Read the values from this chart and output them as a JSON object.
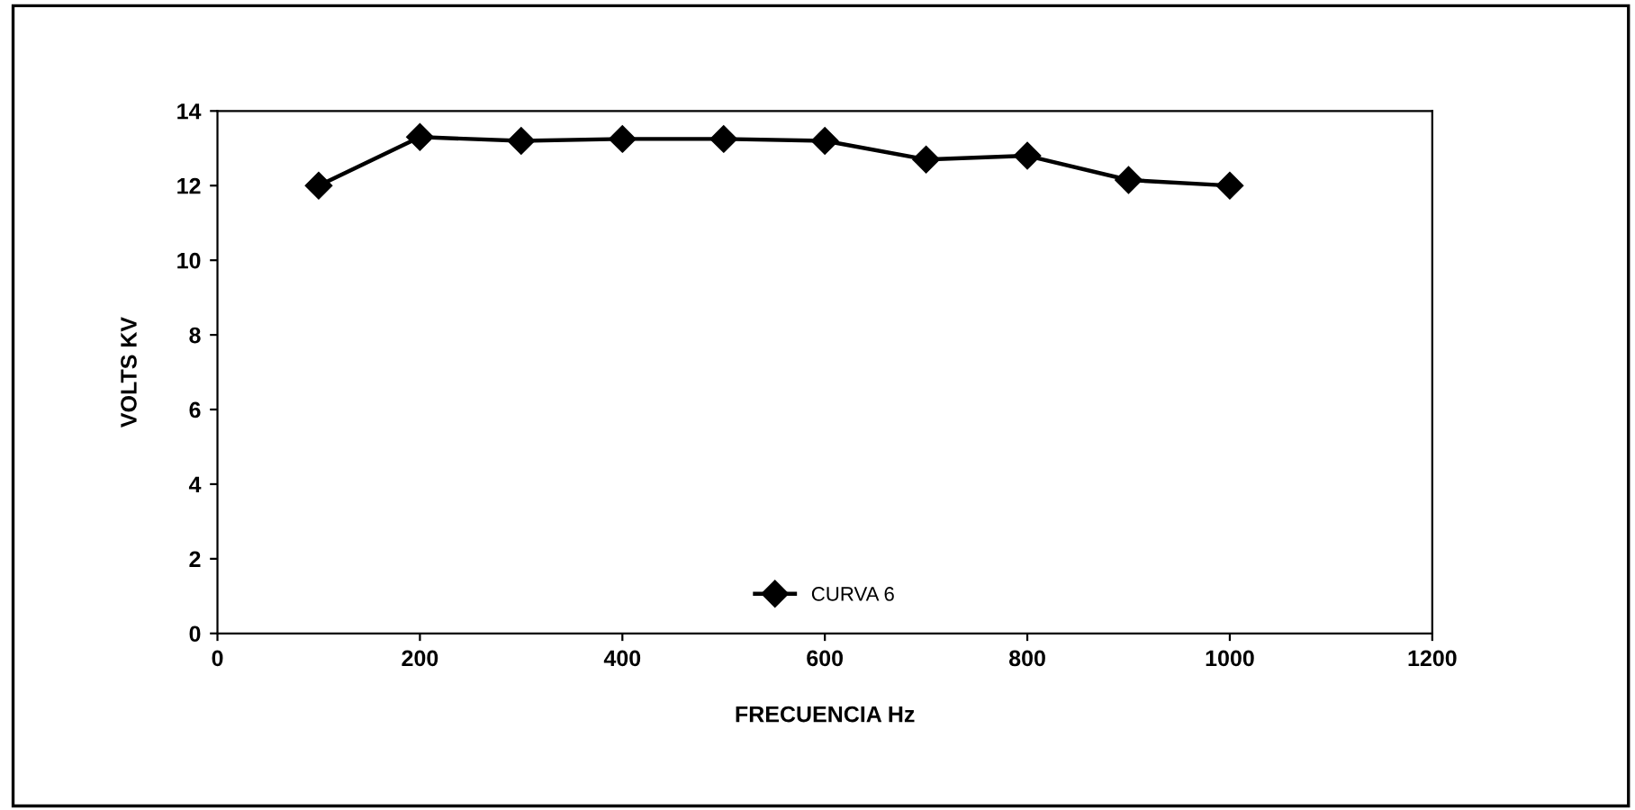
{
  "chart_data": {
    "type": "line",
    "xlabel": "FRECUENCIA Hz",
    "ylabel": "VOLTS KV",
    "x": [
      100,
      200,
      300,
      400,
      500,
      600,
      700,
      800,
      900,
      1000
    ],
    "series": [
      {
        "name": "CURVA 6",
        "color": "#000000",
        "values": [
          12.0,
          13.3,
          13.2,
          13.25,
          13.25,
          13.2,
          12.7,
          12.8,
          12.15,
          12.0
        ]
      }
    ],
    "xlim": [
      0,
      1200
    ],
    "xticks": [
      0,
      200,
      400,
      600,
      800,
      1000,
      1200
    ],
    "ylim": [
      0,
      14
    ],
    "yticks": [
      0,
      2,
      4,
      6,
      8,
      10,
      12,
      14
    ],
    "marker": "diamond",
    "line_style": "solid",
    "grid": false,
    "legend": "bottom"
  }
}
